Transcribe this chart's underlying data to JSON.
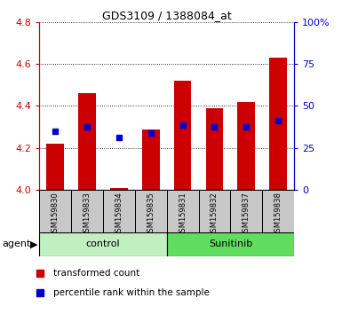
{
  "title": "GDS3109 / 1388084_at",
  "samples": [
    "GSM159830",
    "GSM159833",
    "GSM159834",
    "GSM159835",
    "GSM159831",
    "GSM159832",
    "GSM159837",
    "GSM159838"
  ],
  "red_values": [
    4.22,
    4.46,
    4.01,
    4.29,
    4.52,
    4.39,
    4.42,
    4.63
  ],
  "blue_values": [
    4.28,
    4.3,
    4.25,
    4.27,
    4.31,
    4.3,
    4.3,
    4.33
  ],
  "y_min": 4.0,
  "y_max": 4.8,
  "y_ticks": [
    4.0,
    4.2,
    4.4,
    4.6,
    4.8
  ],
  "y2_ticks_pct": [
    0,
    25,
    50,
    75,
    100
  ],
  "y2_tick_labels": [
    "0",
    "25",
    "50",
    "75",
    "100%"
  ],
  "control_color": "#c0f0c0",
  "sunitinib_color": "#60dd60",
  "bar_color": "#cc0000",
  "blue_color": "#0000cc",
  "bg_color": "#c8c8c8",
  "left_label_color": "#cc0000",
  "right_label_color": "#0000cc",
  "title_fontsize": 9,
  "tick_fontsize": 8,
  "sample_fontsize": 6,
  "group_fontsize": 8,
  "legend_fontsize": 7.5
}
